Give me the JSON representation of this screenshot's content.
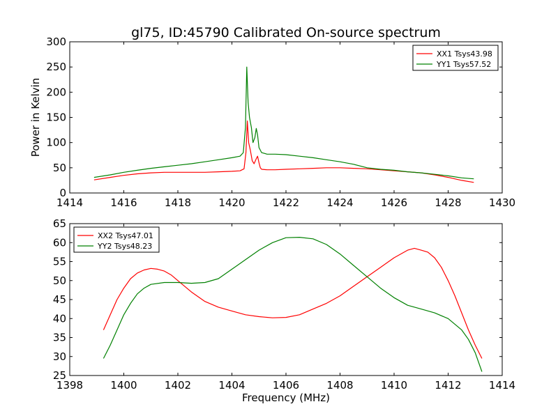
{
  "chart_data": [
    {
      "type": "line",
      "title": "gl75, ID:45790 Calibrated On-source spectrum",
      "xlabel": "",
      "ylabel": "Power in Kelvin",
      "xlim": [
        1414,
        1430
      ],
      "ylim": [
        0,
        300
      ],
      "xticks": [
        1414,
        1416,
        1418,
        1420,
        1422,
        1424,
        1426,
        1428,
        1430
      ],
      "yticks": [
        0,
        50,
        100,
        150,
        200,
        250,
        300
      ],
      "legend_position": "top-right",
      "grid": false,
      "series": [
        {
          "name": "XX1 Tsys43.98",
          "color": "#ff0000",
          "points": [
            [
              1414.9,
              26
            ],
            [
              1415.5,
              31
            ],
            [
              1416.0,
              35
            ],
            [
              1416.5,
              38
            ],
            [
              1417.0,
              40
            ],
            [
              1417.5,
              41
            ],
            [
              1418.0,
              41
            ],
            [
              1418.5,
              41
            ],
            [
              1419.0,
              41
            ],
            [
              1419.5,
              42
            ],
            [
              1420.0,
              43
            ],
            [
              1420.3,
              44
            ],
            [
              1420.45,
              48
            ],
            [
              1420.52,
              80
            ],
            [
              1420.57,
              143
            ],
            [
              1420.62,
              100
            ],
            [
              1420.68,
              85
            ],
            [
              1420.75,
              64
            ],
            [
              1420.82,
              58
            ],
            [
              1420.9,
              68
            ],
            [
              1420.95,
              73
            ],
            [
              1421.0,
              60
            ],
            [
              1421.05,
              50
            ],
            [
              1421.1,
              47
            ],
            [
              1421.3,
              46
            ],
            [
              1421.6,
              46
            ],
            [
              1422.0,
              47
            ],
            [
              1422.5,
              48
            ],
            [
              1423.0,
              49
            ],
            [
              1423.5,
              50
            ],
            [
              1424.0,
              50
            ],
            [
              1424.5,
              49
            ],
            [
              1425.0,
              48
            ],
            [
              1425.5,
              46
            ],
            [
              1426.0,
              44
            ],
            [
              1426.5,
              42
            ],
            [
              1427.0,
              40
            ],
            [
              1427.5,
              36
            ],
            [
              1428.0,
              31
            ],
            [
              1428.5,
              25
            ],
            [
              1428.95,
              21
            ]
          ]
        },
        {
          "name": "YY1 Tsys57.52",
          "color": "#008000",
          "points": [
            [
              1414.9,
              31
            ],
            [
              1415.5,
              36
            ],
            [
              1416.0,
              41
            ],
            [
              1416.5,
              45
            ],
            [
              1417.0,
              49
            ],
            [
              1417.5,
              52
            ],
            [
              1418.0,
              55
            ],
            [
              1418.5,
              58
            ],
            [
              1419.0,
              62
            ],
            [
              1419.5,
              66
            ],
            [
              1420.0,
              70
            ],
            [
              1420.3,
              73
            ],
            [
              1420.42,
              80
            ],
            [
              1420.5,
              130
            ],
            [
              1420.55,
              250
            ],
            [
              1420.6,
              180
            ],
            [
              1420.65,
              150
            ],
            [
              1420.72,
              130
            ],
            [
              1420.78,
              100
            ],
            [
              1420.85,
              110
            ],
            [
              1420.9,
              128
            ],
            [
              1420.95,
              115
            ],
            [
              1421.0,
              90
            ],
            [
              1421.1,
              80
            ],
            [
              1421.3,
              77
            ],
            [
              1421.6,
              77
            ],
            [
              1422.0,
              76
            ],
            [
              1422.5,
              73
            ],
            [
              1423.0,
              70
            ],
            [
              1423.5,
              66
            ],
            [
              1424.0,
              62
            ],
            [
              1424.5,
              57
            ],
            [
              1425.0,
              50
            ],
            [
              1425.5,
              47
            ],
            [
              1426.0,
              45
            ],
            [
              1426.5,
              42
            ],
            [
              1427.0,
              40
            ],
            [
              1427.5,
              37
            ],
            [
              1428.0,
              34
            ],
            [
              1428.5,
              30
            ],
            [
              1428.95,
              28
            ]
          ]
        }
      ]
    },
    {
      "type": "line",
      "title": "",
      "xlabel": "Frequency (MHz)",
      "ylabel": "",
      "xlim": [
        1398,
        1414
      ],
      "ylim": [
        25,
        65
      ],
      "xticks": [
        1398,
        1400,
        1402,
        1404,
        1406,
        1408,
        1410,
        1412,
        1414
      ],
      "yticks": [
        25,
        30,
        35,
        40,
        45,
        50,
        55,
        60,
        65
      ],
      "legend_position": "top-left",
      "grid": false,
      "series": [
        {
          "name": "XX2 Tsys47.01",
          "color": "#ff0000",
          "points": [
            [
              1399.25,
              37
            ],
            [
              1399.5,
              41
            ],
            [
              1399.75,
              45
            ],
            [
              1400.0,
              48
            ],
            [
              1400.25,
              50.5
            ],
            [
              1400.5,
              52
            ],
            [
              1400.75,
              52.8
            ],
            [
              1401.0,
              53.2
            ],
            [
              1401.25,
              53
            ],
            [
              1401.5,
              52.5
            ],
            [
              1401.75,
              51.5
            ],
            [
              1402.0,
              50
            ],
            [
              1402.25,
              48.5
            ],
            [
              1402.5,
              47
            ],
            [
              1403.0,
              44.5
            ],
            [
              1403.5,
              43
            ],
            [
              1404.0,
              42
            ],
            [
              1404.5,
              41
            ],
            [
              1405.0,
              40.5
            ],
            [
              1405.5,
              40.2
            ],
            [
              1406.0,
              40.3
            ],
            [
              1406.5,
              41
            ],
            [
              1407.0,
              42.5
            ],
            [
              1407.5,
              44
            ],
            [
              1408.0,
              46
            ],
            [
              1408.5,
              48.5
            ],
            [
              1409.0,
              51
            ],
            [
              1409.5,
              53.5
            ],
            [
              1410.0,
              56
            ],
            [
              1410.5,
              58
            ],
            [
              1410.75,
              58.5
            ],
            [
              1411.0,
              58
            ],
            [
              1411.25,
              57.5
            ],
            [
              1411.5,
              56
            ],
            [
              1411.75,
              53.5
            ],
            [
              1412.0,
              50
            ],
            [
              1412.25,
              46
            ],
            [
              1412.5,
              41.5
            ],
            [
              1412.75,
              37
            ],
            [
              1413.0,
              33
            ],
            [
              1413.25,
              29.5
            ]
          ]
        },
        {
          "name": "YY2 Tsys48.23",
          "color": "#008000",
          "points": [
            [
              1399.25,
              29.5
            ],
            [
              1399.5,
              33
            ],
            [
              1399.75,
              37
            ],
            [
              1400.0,
              41
            ],
            [
              1400.25,
              44
            ],
            [
              1400.5,
              46.5
            ],
            [
              1400.75,
              48
            ],
            [
              1401.0,
              49
            ],
            [
              1401.5,
              49.5
            ],
            [
              1402.0,
              49.5
            ],
            [
              1402.5,
              49.3
            ],
            [
              1403.0,
              49.5
            ],
            [
              1403.5,
              50.5
            ],
            [
              1404.0,
              53
            ],
            [
              1404.5,
              55.5
            ],
            [
              1405.0,
              58
            ],
            [
              1405.5,
              60
            ],
            [
              1406.0,
              61.3
            ],
            [
              1406.5,
              61.4
            ],
            [
              1407.0,
              61
            ],
            [
              1407.5,
              59.5
            ],
            [
              1408.0,
              57
            ],
            [
              1408.5,
              54
            ],
            [
              1409.0,
              51
            ],
            [
              1409.5,
              48
            ],
            [
              1410.0,
              45.5
            ],
            [
              1410.5,
              43.5
            ],
            [
              1411.0,
              42.5
            ],
            [
              1411.5,
              41.5
            ],
            [
              1412.0,
              40
            ],
            [
              1412.5,
              37
            ],
            [
              1412.75,
              34.5
            ],
            [
              1413.0,
              31
            ],
            [
              1413.25,
              26
            ]
          ]
        }
      ]
    }
  ]
}
